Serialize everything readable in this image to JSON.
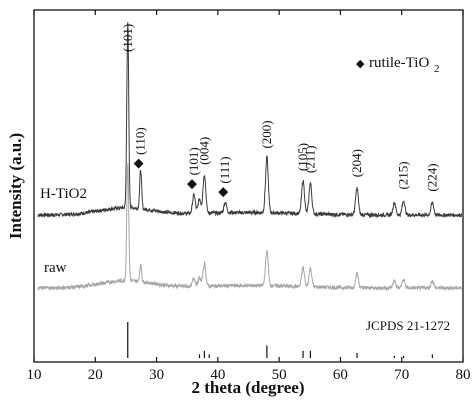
{
  "chart_data": {
    "type": "line",
    "xlabel": "2 theta (degree)",
    "ylabel": "Intensity (a.u.)",
    "xlim": [
      10,
      80
    ],
    "xticks": [
      "10",
      "20",
      "30",
      "40",
      "50",
      "60",
      "70",
      "80"
    ],
    "grid": false,
    "y_tick_labels": false,
    "legend": {
      "marker": "◆",
      "text_main": "rutile-TiO",
      "text_sub": "2",
      "placement": "top-right"
    },
    "series": [
      {
        "name": "H-TiO2",
        "color": "#3a3a3a",
        "baseline": 1.0,
        "peaks": [
          {
            "x": 25.3,
            "h": 9.0,
            "label": "(101)",
            "rutile": false
          },
          {
            "x": 27.4,
            "h": 1.9,
            "label": "(110)",
            "rutile": true
          },
          {
            "x": 36.1,
            "h": 0.9,
            "label": "(101)",
            "rutile": true
          },
          {
            "x": 37.0,
            "h": 0.7,
            "label": "",
            "rutile": false
          },
          {
            "x": 37.8,
            "h": 1.9,
            "label": "(004)",
            "rutile": false
          },
          {
            "x": 41.2,
            "h": 0.5,
            "label": "(111)",
            "rutile": true
          },
          {
            "x": 48.0,
            "h": 2.7,
            "label": "(200)",
            "rutile": false
          },
          {
            "x": 53.9,
            "h": 1.6,
            "label": "(105)",
            "rutile": false
          },
          {
            "x": 55.1,
            "h": 1.5,
            "label": "(211)",
            "rutile": false
          },
          {
            "x": 62.7,
            "h": 1.3,
            "label": "(204)",
            "rutile": false
          },
          {
            "x": 68.8,
            "h": 0.6,
            "label": "",
            "rutile": false
          },
          {
            "x": 70.3,
            "h": 0.7,
            "label": "(215)",
            "rutile": false
          },
          {
            "x": 75.0,
            "h": 0.6,
            "label": "(224)",
            "rutile": false
          }
        ]
      },
      {
        "name": "raw",
        "color": "#a6a6a6",
        "baseline": 0.0,
        "peaks": [
          {
            "x": 25.3,
            "h": 5.8
          },
          {
            "x": 27.4,
            "h": 0.8
          },
          {
            "x": 36.1,
            "h": 0.4
          },
          {
            "x": 37.0,
            "h": 0.4
          },
          {
            "x": 37.8,
            "h": 1.1
          },
          {
            "x": 48.0,
            "h": 1.7
          },
          {
            "x": 53.9,
            "h": 0.9
          },
          {
            "x": 55.1,
            "h": 0.9
          },
          {
            "x": 62.7,
            "h": 0.7
          },
          {
            "x": 68.8,
            "h": 0.35
          },
          {
            "x": 70.3,
            "h": 0.4
          },
          {
            "x": 75.0,
            "h": 0.35
          }
        ]
      }
    ],
    "reference": {
      "label": "JCPDS 21-1272",
      "lines": [
        {
          "x": 25.3,
          "intensity": 100
        },
        {
          "x": 37.0,
          "intensity": 10
        },
        {
          "x": 37.8,
          "intensity": 20
        },
        {
          "x": 38.6,
          "intensity": 10
        },
        {
          "x": 48.0,
          "intensity": 35
        },
        {
          "x": 53.9,
          "intensity": 20
        },
        {
          "x": 55.1,
          "intensity": 20
        },
        {
          "x": 62.7,
          "intensity": 14
        },
        {
          "x": 68.8,
          "intensity": 6
        },
        {
          "x": 70.3,
          "intensity": 6
        },
        {
          "x": 75.0,
          "intensity": 10
        }
      ]
    }
  }
}
